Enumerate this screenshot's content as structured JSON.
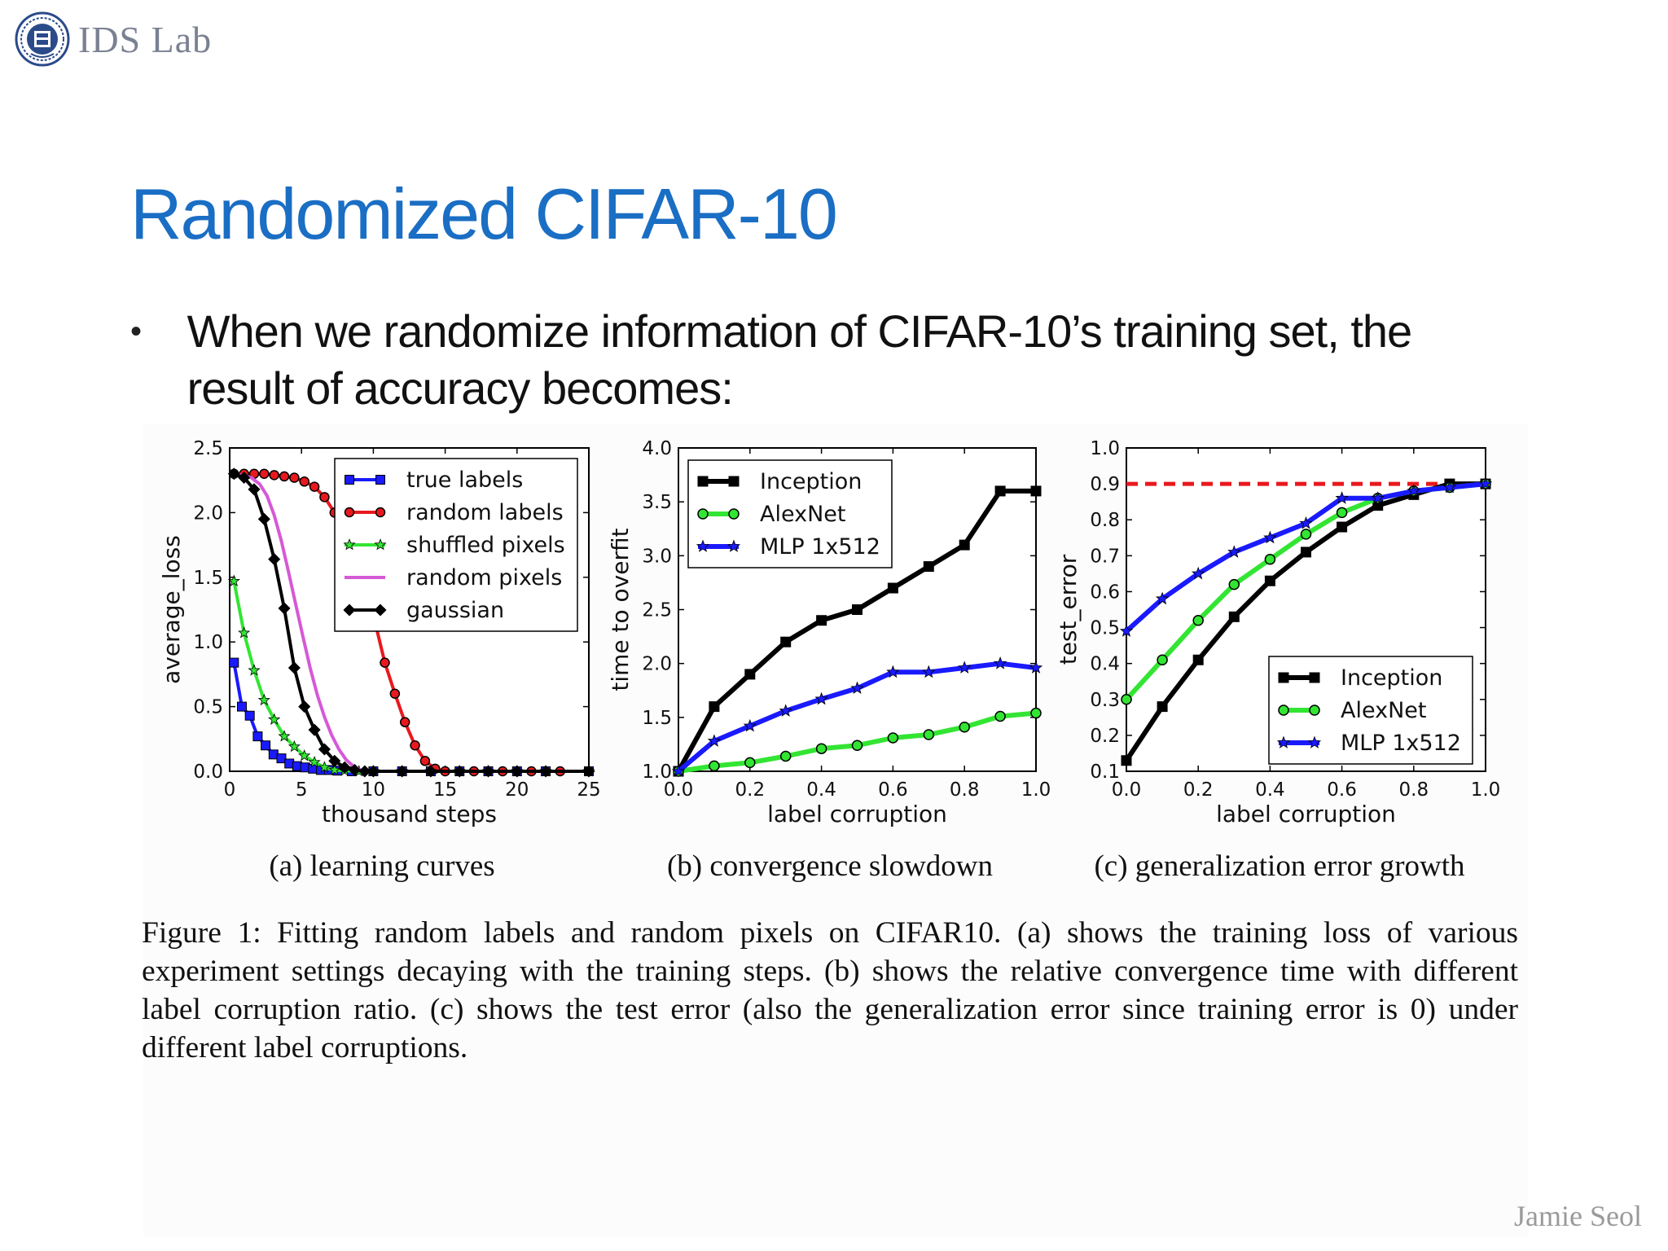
{
  "header": {
    "lab_name": "IDS Lab",
    "logo_icon": "university-seal-icon"
  },
  "slide": {
    "title": "Randomized CIFAR-10",
    "bullet": "When we randomize information of CIFAR-10’s training set, the result of accuracy becomes:"
  },
  "figure": {
    "caption": "Figure 1: Fitting random labels and random pixels on CIFAR10. (a) shows the training loss of various experiment settings decaying with the training steps. (b) shows the relative convergence time with different label corruption ratio. (c) shows the test error (also the generalization error since training error is 0) under different label corruptions."
  },
  "footer": {
    "author": "Jamie Seol"
  },
  "colors": {
    "title_blue": "#1a6ec4",
    "black": "#000000",
    "red": "#e8191e",
    "green": "#33e533",
    "blue": "#1a1aff",
    "magenta": "#d659d6"
  },
  "chart_data": [
    {
      "type": "line",
      "caption": "(a) learning curves",
      "xlabel": "thousand steps",
      "ylabel": "average_loss",
      "xlim": [
        0,
        25
      ],
      "ylim": [
        0,
        2.5
      ],
      "xticks": [
        "0",
        "5",
        "10",
        "15",
        "20",
        "25"
      ],
      "yticks": [
        "0.0",
        "0.5",
        "1.0",
        "1.5",
        "2.0",
        "2.5"
      ],
      "legend_position": "top-right",
      "series": [
        {
          "name": "true labels",
          "color": "#1a1aff",
          "marker": "square",
          "x": [
            0.3,
            0.85,
            1.4,
            1.95,
            2.5,
            3.05,
            3.6,
            4.15,
            4.7,
            5.25,
            5.8,
            6.35,
            6.9,
            7.5,
            8.5,
            10,
            12,
            14,
            16,
            18,
            20,
            22,
            25
          ],
          "y": [
            0.84,
            0.5,
            0.43,
            0.27,
            0.2,
            0.13,
            0.1,
            0.06,
            0.04,
            0.03,
            0.02,
            0.01,
            0.01,
            0.005,
            0,
            0,
            0,
            0,
            0,
            0,
            0,
            0,
            0
          ]
        },
        {
          "name": "random labels",
          "color": "#e8191e",
          "marker": "circle",
          "x": [
            0.3,
            1.0,
            1.7,
            2.4,
            3.1,
            3.8,
            4.5,
            5.2,
            5.9,
            6.6,
            7.3,
            8.0,
            8.7,
            9.4,
            10.1,
            10.8,
            11.5,
            12.2,
            12.9,
            13.6,
            14.3,
            15,
            17,
            19,
            21,
            23,
            25
          ],
          "y": [
            2.3,
            2.3,
            2.3,
            2.3,
            2.29,
            2.28,
            2.27,
            2.24,
            2.2,
            2.12,
            2.0,
            1.86,
            1.66,
            1.43,
            1.16,
            0.84,
            0.6,
            0.38,
            0.2,
            0.08,
            0.02,
            0,
            0,
            0,
            0,
            0,
            0
          ]
        },
        {
          "name": "shuffled pixels",
          "color": "#33e533",
          "marker": "star",
          "x": [
            0.3,
            1.0,
            1.7,
            2.4,
            3.1,
            3.8,
            4.5,
            5.2,
            5.9,
            6.6,
            7.3,
            8.0,
            9,
            10,
            12,
            14,
            16,
            18,
            20,
            22,
            25
          ],
          "y": [
            1.47,
            1.07,
            0.78,
            0.55,
            0.4,
            0.27,
            0.19,
            0.12,
            0.07,
            0.03,
            0.01,
            0.005,
            0,
            0,
            0,
            0,
            0,
            0,
            0,
            0,
            0
          ]
        },
        {
          "name": "random pixels",
          "color": "#d659d6",
          "marker": "none",
          "x": [
            0.3,
            0.9,
            1.5,
            2.1,
            2.6,
            3.1,
            3.6,
            4.1,
            4.6,
            5.1,
            5.6,
            6.1,
            6.6,
            7.1,
            7.6,
            8.1,
            8.6,
            9.1,
            10,
            12,
            14,
            16,
            18,
            20,
            22,
            25
          ],
          "y": [
            2.3,
            2.29,
            2.27,
            2.22,
            2.13,
            1.98,
            1.78,
            1.54,
            1.29,
            1.04,
            0.8,
            0.59,
            0.42,
            0.28,
            0.17,
            0.09,
            0.04,
            0.01,
            0,
            0,
            0,
            0,
            0,
            0,
            0,
            0
          ]
        },
        {
          "name": "gaussian",
          "color": "#000000",
          "marker": "diamond",
          "x": [
            0.3,
            1.0,
            1.7,
            2.4,
            3.1,
            3.8,
            4.5,
            5.2,
            5.9,
            6.6,
            7.3,
            8.0,
            8.7,
            9.4,
            10,
            12,
            14,
            16,
            18,
            20,
            22,
            25
          ],
          "y": [
            2.3,
            2.27,
            2.18,
            1.95,
            1.64,
            1.26,
            0.8,
            0.5,
            0.32,
            0.17,
            0.08,
            0.03,
            0.01,
            0,
            0,
            0,
            0,
            0,
            0,
            0,
            0,
            0
          ]
        }
      ]
    },
    {
      "type": "line",
      "caption": "(b) convergence slowdown",
      "xlabel": "label corruption",
      "ylabel": "time to overfit",
      "xlim": [
        0,
        1
      ],
      "ylim": [
        1,
        4
      ],
      "xticks": [
        "0.0",
        "0.2",
        "0.4",
        "0.6",
        "0.8",
        "1.0"
      ],
      "yticks": [
        "1.0",
        "1.5",
        "2.0",
        "2.5",
        "3.0",
        "3.5",
        "4.0"
      ],
      "legend_position": "top-left",
      "series": [
        {
          "name": "Inception",
          "color": "#000000",
          "marker": "square",
          "x": [
            0,
            0.1,
            0.2,
            0.3,
            0.4,
            0.5,
            0.6,
            0.7,
            0.8,
            0.9,
            1.0
          ],
          "y": [
            1.0,
            1.6,
            1.9,
            2.2,
            2.4,
            2.5,
            2.7,
            2.9,
            3.1,
            3.6,
            3.6
          ]
        },
        {
          "name": "AlexNet",
          "color": "#33e533",
          "marker": "circle",
          "x": [
            0,
            0.1,
            0.2,
            0.3,
            0.4,
            0.5,
            0.6,
            0.7,
            0.8,
            0.9,
            1.0
          ],
          "y": [
            1.0,
            1.05,
            1.08,
            1.14,
            1.21,
            1.24,
            1.31,
            1.34,
            1.41,
            1.51,
            1.54
          ]
        },
        {
          "name": "MLP 1x512",
          "color": "#1a1aff",
          "marker": "star",
          "x": [
            0,
            0.1,
            0.2,
            0.3,
            0.4,
            0.5,
            0.6,
            0.7,
            0.8,
            0.9,
            1.0
          ],
          "y": [
            1.0,
            1.28,
            1.42,
            1.56,
            1.67,
            1.77,
            1.92,
            1.92,
            1.96,
            2.0,
            1.96
          ]
        }
      ]
    },
    {
      "type": "line",
      "caption": "(c) generalization error growth",
      "xlabel": "label corruption",
      "ylabel": "test_error",
      "xlim": [
        0,
        1
      ],
      "ylim": [
        0.1,
        1.0
      ],
      "xticks": [
        "0.0",
        "0.2",
        "0.4",
        "0.6",
        "0.8",
        "1.0"
      ],
      "yticks": [
        "0.1",
        "0.2",
        "0.3",
        "0.4",
        "0.5",
        "0.6",
        "0.7",
        "0.8",
        "0.9",
        "1.0"
      ],
      "legend_position": "bottom-right",
      "reference_line": {
        "y": 0.9,
        "color": "#e8191e",
        "style": "dashed"
      },
      "series": [
        {
          "name": "Inception",
          "color": "#000000",
          "marker": "square",
          "x": [
            0,
            0.1,
            0.2,
            0.3,
            0.4,
            0.5,
            0.6,
            0.7,
            0.8,
            0.9,
            1.0
          ],
          "y": [
            0.13,
            0.28,
            0.41,
            0.53,
            0.63,
            0.71,
            0.78,
            0.84,
            0.87,
            0.9,
            0.9
          ]
        },
        {
          "name": "AlexNet",
          "color": "#33e533",
          "marker": "circle",
          "x": [
            0,
            0.1,
            0.2,
            0.3,
            0.4,
            0.5,
            0.6,
            0.7,
            0.8,
            0.9,
            1.0
          ],
          "y": [
            0.3,
            0.41,
            0.52,
            0.62,
            0.69,
            0.76,
            0.82,
            0.86,
            0.88,
            0.89,
            0.9
          ]
        },
        {
          "name": "MLP 1x512",
          "color": "#1a1aff",
          "marker": "star",
          "x": [
            0,
            0.1,
            0.2,
            0.3,
            0.4,
            0.5,
            0.6,
            0.7,
            0.8,
            0.9,
            1.0
          ],
          "y": [
            0.49,
            0.58,
            0.65,
            0.71,
            0.75,
            0.79,
            0.86,
            0.86,
            0.88,
            0.89,
            0.9
          ]
        }
      ]
    }
  ]
}
